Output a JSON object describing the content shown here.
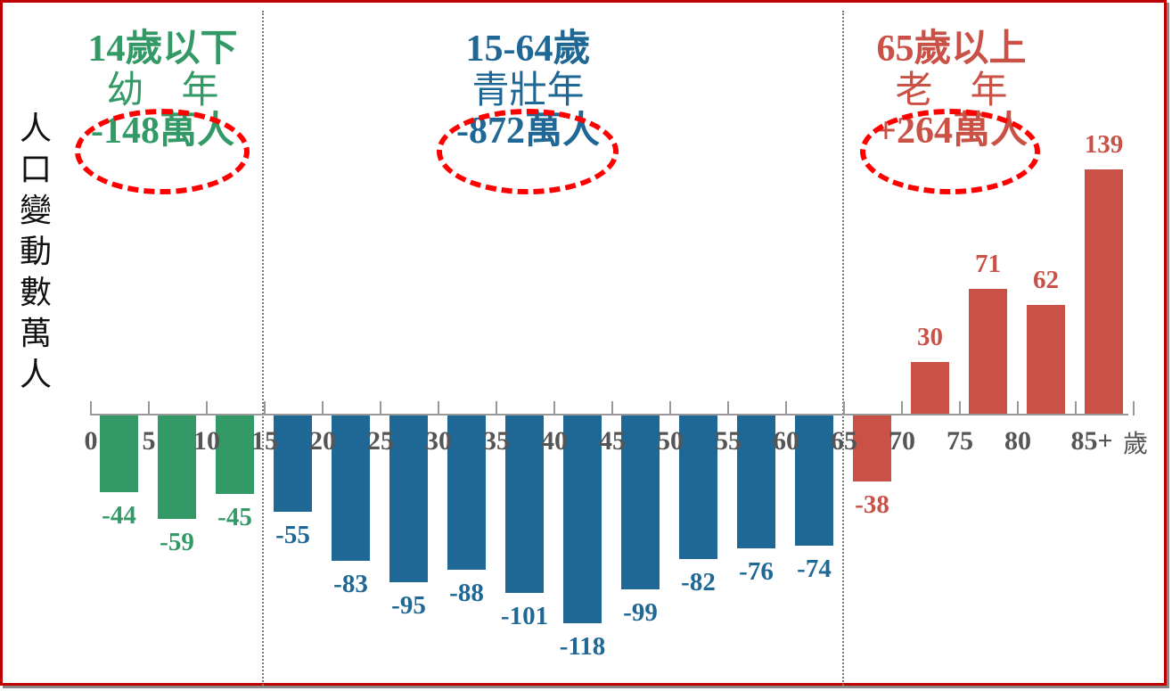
{
  "chart_data": {
    "type": "bar",
    "title": "",
    "xlabel": "歲",
    "ylabel": "人口變動數(萬人)",
    "categories": [
      "0-4",
      "5-9",
      "10-14",
      "15-19",
      "20-24",
      "25-29",
      "30-34",
      "35-39",
      "40-44",
      "45-49",
      "50-54",
      "55-59",
      "60-64",
      "65-69",
      "70-74",
      "75-79",
      "80-84",
      "85+"
    ],
    "values": [
      -44,
      -59,
      -45,
      -55,
      -83,
      -95,
      -88,
      -101,
      -118,
      -99,
      -82,
      -76,
      -74,
      -38,
      30,
      71,
      62,
      139
    ],
    "x_tick_labels": [
      "0",
      "5",
      "10",
      "15",
      "20",
      "25",
      "30",
      "35",
      "40",
      "45",
      "50",
      "55",
      "60",
      "65",
      "70",
      "75",
      "80",
      "85+"
    ],
    "groups": [
      {
        "name": "14歲以下 幼年",
        "range": "0-14",
        "total": "-148萬人",
        "color": "#339966"
      },
      {
        "name": "15-64歲 青壯年",
        "range": "15-64",
        "total": "-872萬人",
        "color": "#1f6895"
      },
      {
        "name": "65歲以上 老年",
        "range": "65+",
        "total": "+264萬人",
        "color": "#c95146"
      }
    ],
    "grid": false,
    "legend": "none",
    "annotations": [
      "red dashed ellipses around group totals"
    ]
  },
  "ylabel_chars": [
    "人",
    "口",
    "變",
    "動",
    "數",
    "(",
    "萬",
    "人",
    ")"
  ],
  "xunit": "歲",
  "groups": [
    {
      "line1": "14歲以下",
      "line2": "幼　年",
      "total": "-148萬人"
    },
    {
      "line1": "15-64歲",
      "line2": "青壯年",
      "total": "-872萬人"
    },
    {
      "line1": "65歲以上",
      "line2": "老　年",
      "total": "+264萬人"
    }
  ],
  "colors": {
    "youth": "#339966",
    "working": "#1f6895",
    "elderly": "#c95146",
    "ellipse": "#ff0000",
    "frame": "#c00000"
  }
}
